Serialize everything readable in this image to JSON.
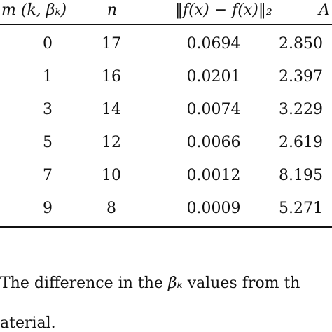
{
  "table": {
    "headers": {
      "m": "m (k, βₖ)",
      "n": "n",
      "err": "‖f(x) − f(x)‖₂",
      "a": "A"
    },
    "rows": [
      {
        "m": "0",
        "n": "17",
        "err": "0.0694",
        "a": "2.850"
      },
      {
        "m": "1",
        "n": "16",
        "err": "0.0201",
        "a": "2.397"
      },
      {
        "m": "3",
        "n": "14",
        "err": "0.0074",
        "a": "3.229"
      },
      {
        "m": "5",
        "n": "12",
        "err": "0.0066",
        "a": "2.619"
      },
      {
        "m": "7",
        "n": "10",
        "err": "0.0012",
        "a": "8.195"
      },
      {
        "m": "9",
        "n": "8",
        "err": "0.0009",
        "a": "5.271"
      }
    ]
  },
  "caption": {
    "line1_pre": "The difference in the",
    "line1_symbol": "βₖ",
    "line1_post": "values from th",
    "line2": "aterial."
  }
}
